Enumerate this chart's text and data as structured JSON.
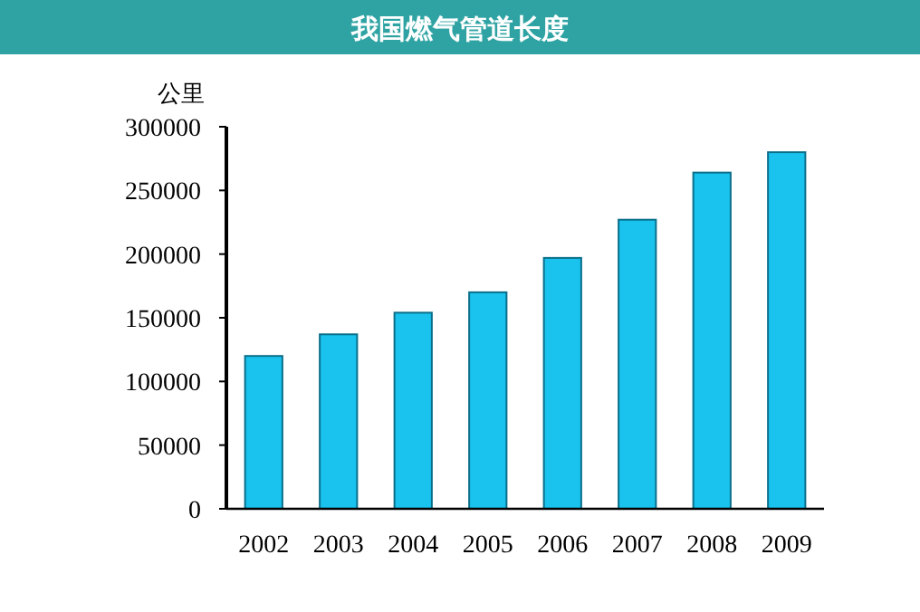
{
  "chart_data": {
    "type": "bar",
    "title": "我国燃气管道长度",
    "ylabel": "公里",
    "categories": [
      "2002",
      "2003",
      "2004",
      "2005",
      "2006",
      "2007",
      "2008",
      "2009"
    ],
    "values": [
      120000,
      137000,
      154000,
      170000,
      197000,
      227000,
      264000,
      280000
    ],
    "color": "#19c3ee",
    "ylim": [
      0,
      300000
    ],
    "yticks": [
      0,
      50000,
      100000,
      150000,
      200000,
      250000,
      300000
    ],
    "grid": false
  }
}
